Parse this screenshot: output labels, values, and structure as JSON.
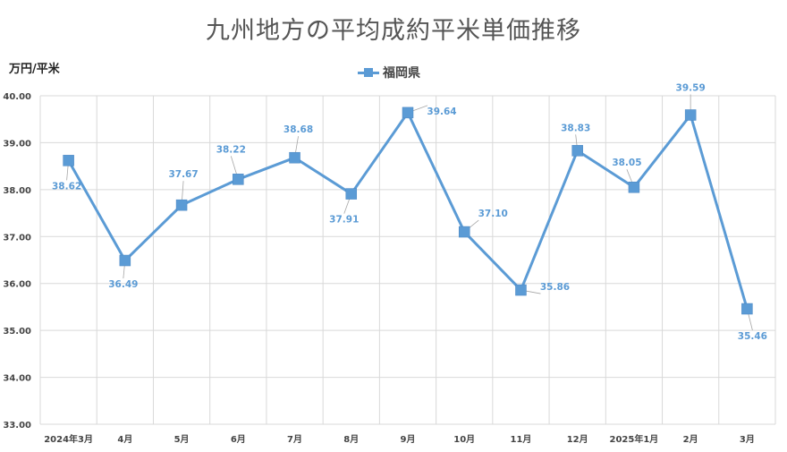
{
  "chart_data": {
    "type": "line",
    "title": "九州地方の平均成約平米単価推移",
    "ylabel": "万円/平米",
    "xlabel": "",
    "categories": [
      "2024年3月",
      "4月",
      "5月",
      "6月",
      "7月",
      "8月",
      "9月",
      "10月",
      "11月",
      "12月",
      "2025年1月",
      "2月",
      "3月"
    ],
    "series": [
      {
        "name": "福岡県",
        "values": [
          38.62,
          36.49,
          37.67,
          38.22,
          38.68,
          37.91,
          39.64,
          37.1,
          35.86,
          38.83,
          38.05,
          39.59,
          35.46
        ],
        "labels": [
          "38.62",
          "36.49",
          "37.67",
          "38.22",
          "38.68",
          "37.91",
          "39.64",
          "37.10",
          "35.86",
          "38.83",
          "38.05",
          "39.59",
          "35.46"
        ]
      }
    ],
    "ylim": [
      33,
      40
    ],
    "yticks": [
      "33.00",
      "34.00",
      "35.00",
      "36.00",
      "37.00",
      "38.00",
      "39.00",
      "40.00"
    ],
    "grid": true,
    "legend_position": "top-center",
    "colors": {
      "series": "#5B9BD5",
      "grid": "#D9D9D9",
      "label": "#5B9BD5",
      "leader": "#A6A6A6"
    }
  }
}
